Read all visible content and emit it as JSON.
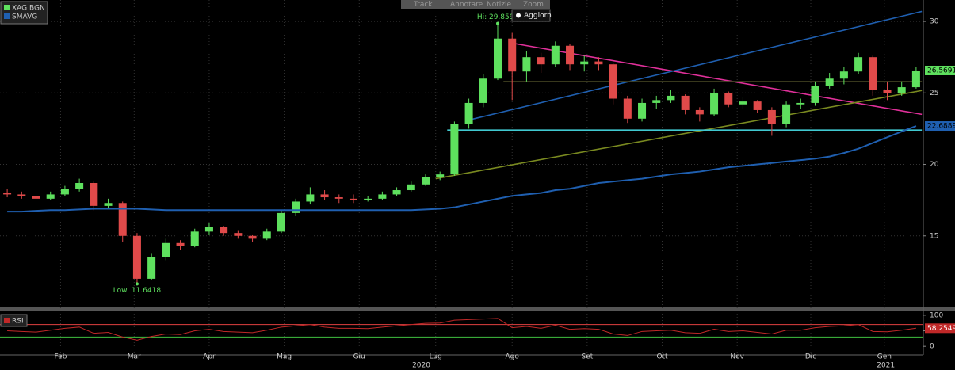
{
  "toolbar": {
    "buttons": [
      "Track",
      "Annotare",
      "Notizie",
      "Zoom"
    ],
    "refresh": "Aggiorn"
  },
  "chart_data": {
    "type": "candlestick",
    "xlim": [
      0,
      64
    ],
    "ylim": [
      10,
      31.5
    ],
    "yticks": [
      15,
      20,
      25,
      30
    ],
    "grid": true,
    "xticks": [
      {
        "value": 4.2,
        "label": "Feb"
      },
      {
        "value": 9.3,
        "label": "Mar"
      },
      {
        "value": 14.5,
        "label": "Apr"
      },
      {
        "value": 19.7,
        "label": "Mag"
      },
      {
        "value": 24.9,
        "label": "Giu"
      },
      {
        "value": 30.2,
        "label": "Lug"
      },
      {
        "value": 35.5,
        "label": "Ago"
      },
      {
        "value": 40.7,
        "label": "Set"
      },
      {
        "value": 45.9,
        "label": "Ott"
      },
      {
        "value": 51.1,
        "label": "Nov"
      },
      {
        "value": 56.2,
        "label": "Dic"
      },
      {
        "value": 61.3,
        "label": "Gen"
      }
    ],
    "years": [
      {
        "value": 29.2,
        "label": "2020"
      },
      {
        "value": 61.4,
        "label": "2021"
      }
    ],
    "series": [
      {
        "name": "XAG BGN",
        "type": "candlestick",
        "color": "#5ee05e",
        "down_color": "#e04a4a",
        "values": [
          [
            18.0,
            18.3,
            17.7,
            17.9
          ],
          [
            17.9,
            18.1,
            17.6,
            17.8
          ],
          [
            17.8,
            17.9,
            17.4,
            17.6
          ],
          [
            17.6,
            18.1,
            17.5,
            17.9
          ],
          [
            17.9,
            18.5,
            17.8,
            18.3
          ],
          [
            18.3,
            19.0,
            18.1,
            18.7
          ],
          [
            18.7,
            18.8,
            16.8,
            17.1
          ],
          [
            17.1,
            17.6,
            16.9,
            17.3
          ],
          [
            17.3,
            17.4,
            14.6,
            15.0
          ],
          [
            15.0,
            15.2,
            11.6418,
            12.0
          ],
          [
            12.0,
            13.8,
            11.9,
            13.5
          ],
          [
            13.5,
            14.8,
            13.3,
            14.5
          ],
          [
            14.5,
            14.7,
            14.0,
            14.3
          ],
          [
            14.3,
            15.5,
            14.2,
            15.3
          ],
          [
            15.3,
            15.9,
            15.1,
            15.6
          ],
          [
            15.6,
            15.7,
            15.0,
            15.2
          ],
          [
            15.2,
            15.4,
            14.8,
            15.0
          ],
          [
            15.0,
            15.1,
            14.6,
            14.8
          ],
          [
            14.8,
            15.5,
            14.7,
            15.3
          ],
          [
            15.3,
            16.8,
            15.2,
            16.6
          ],
          [
            16.6,
            17.6,
            16.4,
            17.4
          ],
          [
            17.4,
            18.4,
            17.2,
            17.9
          ],
          [
            17.9,
            18.2,
            17.5,
            17.7
          ],
          [
            17.7,
            17.9,
            17.3,
            17.6
          ],
          [
            17.6,
            17.9,
            17.3,
            17.5
          ],
          [
            17.5,
            17.8,
            17.4,
            17.6
          ],
          [
            17.6,
            18.1,
            17.5,
            17.9
          ],
          [
            17.9,
            18.4,
            17.8,
            18.2
          ],
          [
            18.2,
            18.8,
            18.1,
            18.6
          ],
          [
            18.6,
            19.3,
            18.5,
            19.1
          ],
          [
            19.1,
            19.5,
            18.9,
            19.3
          ],
          [
            19.3,
            23.0,
            19.2,
            22.8
          ],
          [
            22.8,
            24.6,
            22.5,
            24.3
          ],
          [
            24.3,
            26.3,
            24.0,
            26.0
          ],
          [
            26.0,
            29.8591,
            25.9,
            28.8
          ],
          [
            28.8,
            29.2,
            24.5,
            26.5
          ],
          [
            26.5,
            27.9,
            25.8,
            27.5
          ],
          [
            27.5,
            27.8,
            26.4,
            27.0
          ],
          [
            27.0,
            28.6,
            26.8,
            28.3
          ],
          [
            28.3,
            28.4,
            26.6,
            27.0
          ],
          [
            27.0,
            27.6,
            26.5,
            27.2
          ],
          [
            27.2,
            27.5,
            26.6,
            27.0
          ],
          [
            27.0,
            27.1,
            24.2,
            24.6
          ],
          [
            24.6,
            24.8,
            22.9,
            23.2
          ],
          [
            23.2,
            24.6,
            23.0,
            24.3
          ],
          [
            24.3,
            24.8,
            23.9,
            24.5
          ],
          [
            24.5,
            25.2,
            24.3,
            24.8
          ],
          [
            24.8,
            24.9,
            23.5,
            23.8
          ],
          [
            23.8,
            24.0,
            23.0,
            23.5
          ],
          [
            23.5,
            25.3,
            23.4,
            25.0
          ],
          [
            25.0,
            25.1,
            24.0,
            24.2
          ],
          [
            24.2,
            24.7,
            23.9,
            24.4
          ],
          [
            24.4,
            24.5,
            23.6,
            23.8
          ],
          [
            23.8,
            24.0,
            22.0,
            22.8
          ],
          [
            22.8,
            24.4,
            22.6,
            24.2
          ],
          [
            24.2,
            24.6,
            23.9,
            24.3
          ],
          [
            24.3,
            25.8,
            24.1,
            25.5
          ],
          [
            25.5,
            26.4,
            25.3,
            26.0
          ],
          [
            26.0,
            26.8,
            25.6,
            26.5
          ],
          [
            26.5,
            27.8,
            26.3,
            27.5
          ],
          [
            27.5,
            27.6,
            24.8,
            25.2
          ],
          [
            25.2,
            25.8,
            24.5,
            25.0
          ],
          [
            25.0,
            25.8,
            24.8,
            25.4
          ],
          [
            25.4,
            26.8,
            25.3,
            26.5691
          ]
        ]
      },
      {
        "name": "SMAVG",
        "type": "line",
        "color": "#1f5fb0",
        "values": [
          16.7,
          16.7,
          16.75,
          16.8,
          16.8,
          16.85,
          16.9,
          16.9,
          16.9,
          16.9,
          16.85,
          16.8,
          16.8,
          16.8,
          16.8,
          16.8,
          16.8,
          16.8,
          16.8,
          16.8,
          16.8,
          16.8,
          16.8,
          16.8,
          16.8,
          16.8,
          16.8,
          16.8,
          16.8,
          16.85,
          16.9,
          17.0,
          17.2,
          17.4,
          17.6,
          17.8,
          17.9,
          18.0,
          18.2,
          18.3,
          18.5,
          18.7,
          18.8,
          18.9,
          19.0,
          19.15,
          19.3,
          19.4,
          19.5,
          19.65,
          19.8,
          19.9,
          20.0,
          20.1,
          20.2,
          20.3,
          20.4,
          20.55,
          20.8,
          21.1,
          21.5,
          21.9,
          22.3,
          22.6889
        ]
      }
    ],
    "annotations": [
      {
        "text": "Hi: 29.8591",
        "x": 34,
        "y": 29.8591
      },
      {
        "text": "Low: 11.6418",
        "x": 9,
        "y": 11.6418
      }
    ],
    "trendlines": [
      {
        "color": "#e0309a",
        "points": [
          [
            35.4,
            28.5
          ],
          [
            63.9,
            23.5
          ]
        ]
      },
      {
        "color": "#1f5fb0",
        "points": [
          [
            32.3,
            23.06
          ],
          [
            63.9,
            30.7
          ]
        ]
      },
      {
        "color": "#7a8a20",
        "points": [
          [
            30.2,
            19.0
          ],
          [
            63.9,
            25.17
          ]
        ]
      },
      {
        "color": "#404020",
        "points": [
          [
            34.9,
            25.8
          ],
          [
            63.9,
            25.8
          ]
        ]
      },
      {
        "color": "#40c8d0",
        "points": [
          [
            31.0,
            22.4
          ],
          [
            63.9,
            22.4
          ]
        ]
      }
    ],
    "rsi": {
      "name": "RSI",
      "color": "#c02828",
      "ylim": [
        -25,
        115
      ],
      "yticks": [
        0,
        50,
        100
      ],
      "levels": [
        {
          "value": 70,
          "color": "#e04040"
        },
        {
          "value": 30,
          "color": "#40c040"
        }
      ],
      "values": [
        50,
        48,
        46,
        52,
        58,
        62,
        42,
        45,
        30,
        20,
        32,
        40,
        38,
        50,
        55,
        48,
        46,
        44,
        52,
        62,
        66,
        70,
        62,
        58,
        58,
        57,
        62,
        66,
        70,
        74,
        75,
        84,
        86,
        88,
        90,
        60,
        64,
        58,
        68,
        55,
        57,
        55,
        40,
        35,
        48,
        50,
        52,
        44,
        42,
        55,
        48,
        50,
        45,
        40,
        52,
        52,
        60,
        64,
        66,
        70,
        48,
        47,
        52,
        58.2549
      ]
    }
  }
}
